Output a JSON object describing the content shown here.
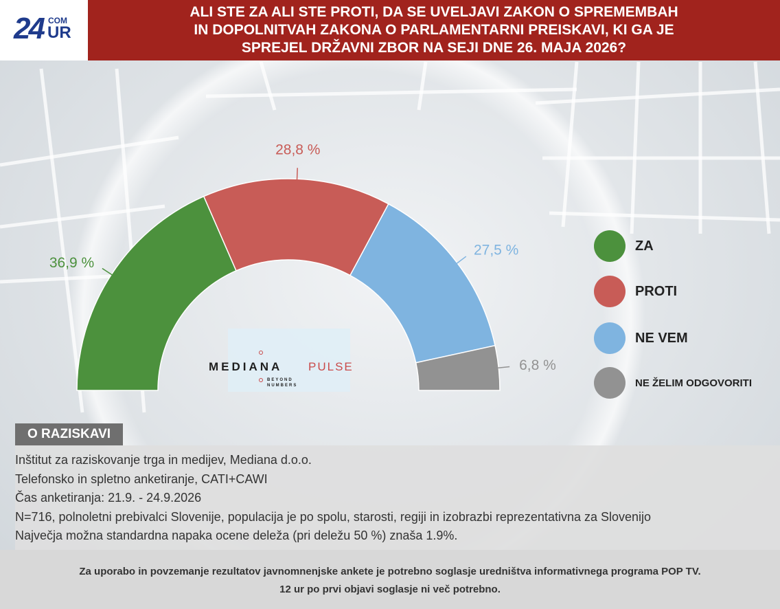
{
  "logo": {
    "main": "24",
    "com": "COM",
    "ur": "UR"
  },
  "header": {
    "title_lines": [
      "ALI STE ZA ALI STE PROTI, DA SE UVELJAVI ZAKON O SPREMEMBAH",
      "IN DOPOLNITVAH ZAKONA O PARLAMENTARNI PREISKAVI, KI GA JE",
      "SPREJEL  DRŽAVNI ZBOR NA SEJI DNE 26. MAJA 2026?"
    ]
  },
  "chart_data": {
    "type": "pie",
    "variant": "semicircle-donut",
    "categories": [
      "ZA",
      "PROTI",
      "NE VEM",
      "NE ŽELIM ODGOVORITI"
    ],
    "values": [
      36.9,
      28.8,
      27.5,
      6.8
    ],
    "value_labels": [
      "36,9 %",
      "28,8 %",
      "27,5 %",
      "6,8 %"
    ],
    "colors": [
      "#4c913d",
      "#c85c57",
      "#7fb4e0",
      "#929292"
    ],
    "label_colors": [
      "#4c913d",
      "#c85c57",
      "#7fb4e0",
      "#929292"
    ],
    "legend_position": "right"
  },
  "watermark": {
    "word": "MEDIANA",
    "pulse": "PULSE",
    "tagline": [
      "BEYOND",
      "NUMBERS"
    ]
  },
  "about": {
    "tab_label": "O RAZISKAVI",
    "lines": [
      "Inštitut za raziskovanje trga in medijev,   Mediana d.o.o.",
      "Telefonsko   in spletno anketiranje, CATI+CAWI",
      "Čas anketiranja: 21.9. - 24.9.2026",
      "N=716, polnoletni prebivalci Slovenije, populacija je po spolu, starosti, regiji in izobrazbi reprezentativna za Slovenijo",
      "Največja možna standardna napaka ocene deleža (pri deležu 50 %) znaša 1.9%."
    ]
  },
  "footer": {
    "lines": [
      "Za uporabo in povzemanje rezultatov javnomnenjske ankete je potrebno soglasje uredništva informativnega programa POP TV.",
      "12 ur po prvi objavi soglasje ni več potrebno."
    ]
  }
}
